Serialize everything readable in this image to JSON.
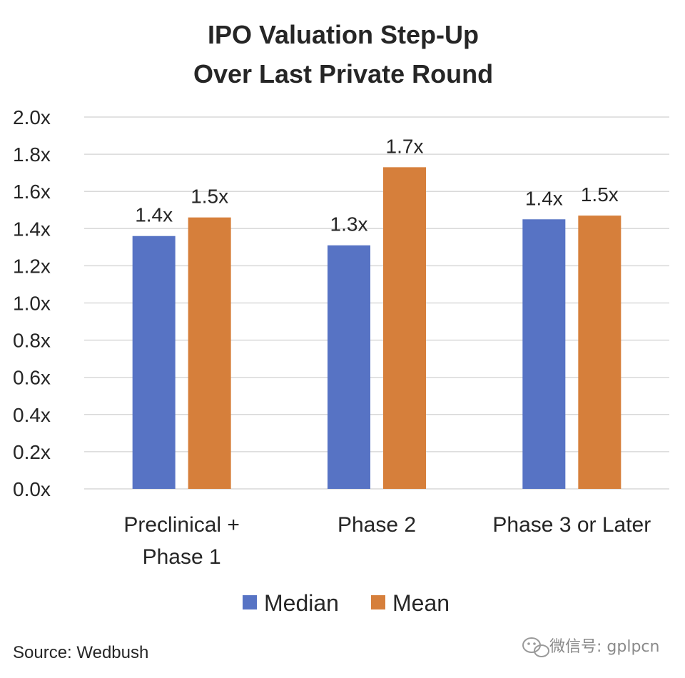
{
  "chart_data": {
    "type": "bar",
    "title": [
      "IPO Valuation Step-Up",
      "Over Last Private Round"
    ],
    "categories": [
      [
        "Preclinical +",
        "Phase 1"
      ],
      [
        "Phase 2"
      ],
      [
        "Phase 3 or Later"
      ]
    ],
    "series": [
      {
        "name": "Median",
        "color": "#5773c4",
        "values": [
          1.36,
          1.31,
          1.45
        ],
        "labels": [
          "1.4x",
          "1.3x",
          "1.4x"
        ]
      },
      {
        "name": "Mean",
        "color": "#d67f3b",
        "values": [
          1.46,
          1.73,
          1.47
        ],
        "labels": [
          "1.5x",
          "1.7x",
          "1.5x"
        ]
      }
    ],
    "ylim": [
      0,
      2.0
    ],
    "yticks": [
      0,
      0.2,
      0.4,
      0.6,
      0.8,
      1.0,
      1.2,
      1.4,
      1.6,
      1.8,
      2.0
    ],
    "ytick_labels": [
      "0.0x",
      "0.2x",
      "0.4x",
      "0.6x",
      "0.8x",
      "1.0x",
      "1.2x",
      "1.4x",
      "1.6x",
      "1.8x",
      "2.0x"
    ],
    "grid": true,
    "legend_position": "bottom-center"
  },
  "source": "Source: Wedbush",
  "watermark": {
    "text": "微信号: gplpcn",
    "icon": "wechat-icon"
  }
}
